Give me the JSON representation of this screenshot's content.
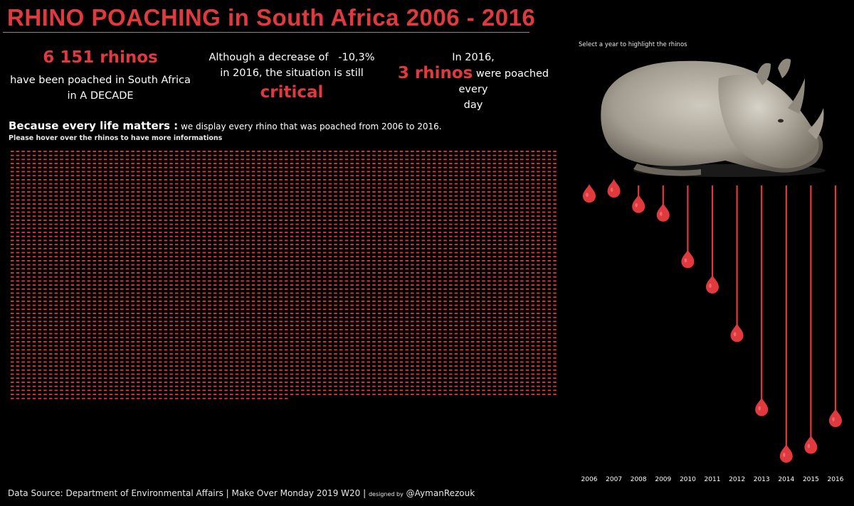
{
  "title": "RHINO POACHING in South Africa 2006 - 2016",
  "kpis": {
    "total_count": "6 151 rhinos",
    "total_line1": "have been poached in South Africa",
    "total_line2": "in A DECADE",
    "decrease_line1": "Although a decrease of   -10,3%",
    "decrease_line2": "in 2016, the situation is still",
    "decrease_word": "critical",
    "daily_line1": "In 2016,",
    "daily_count": "3 rhinos",
    "daily_line2": " were poached every",
    "daily_line3": "day"
  },
  "subheading": {
    "bold": "Because every life matters :",
    "rest": " we display every rhino that was poached from 2006 to 2016.",
    "note": "Please hover over the rhinos to have more informations"
  },
  "select_note": "Select a year to highlight the rhinos",
  "footer": {
    "main": "Data Source: Department of Environmental Affairs | Make Over Monday 2019 W20 | ",
    "small": "designed by",
    "author": " @AymanRezouk"
  },
  "colors": {
    "accent": "#e03a3e",
    "background": "#000000",
    "text": "#ffffff"
  },
  "chart_data": [
    {
      "type": "table",
      "description_units": "one dash per poached rhino",
      "total": 6151
    },
    {
      "type": "line",
      "categories": [
        "2006",
        "2007",
        "2008",
        "2009",
        "2010",
        "2011",
        "2012",
        "2013",
        "2014",
        "2015",
        "2016"
      ],
      "values": [
        36,
        13,
        83,
        122,
        333,
        448,
        668,
        1004,
        1215,
        1175,
        1054
      ],
      "xlabel": "",
      "ylabel": "",
      "ylim": [
        0,
        1215
      ]
    }
  ]
}
